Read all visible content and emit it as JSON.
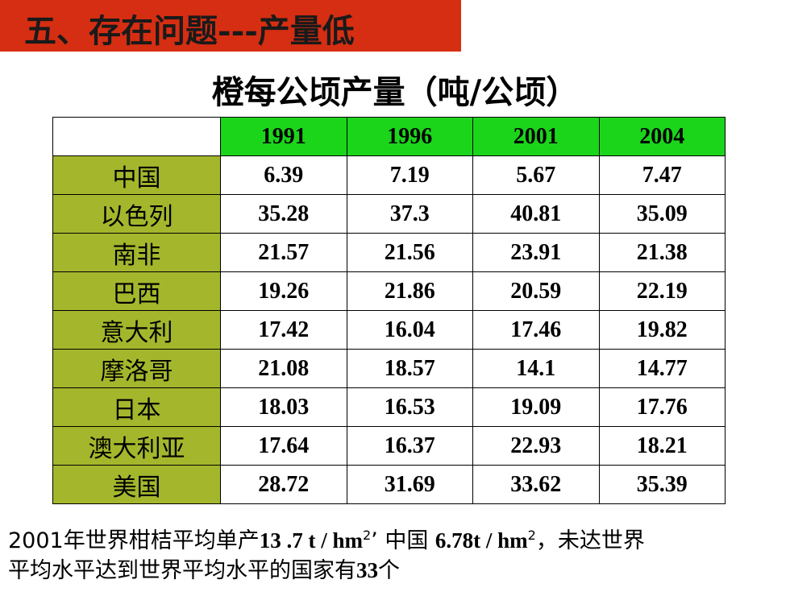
{
  "banner": {
    "title": "五、存在问题---产量低"
  },
  "table_title": "橙每公顷产量（吨/公顷）",
  "table": {
    "corner": "",
    "years": [
      "1991",
      "1996",
      "2001",
      "2004"
    ],
    "rows": [
      {
        "country": "中国",
        "values": [
          "6.39",
          "7.19",
          "5.67",
          "7.47"
        ]
      },
      {
        "country": "以色列",
        "values": [
          "35.28",
          "37.3",
          "40.81",
          "35.09"
        ]
      },
      {
        "country": "南非",
        "values": [
          "21.57",
          "21.56",
          "23.91",
          "21.38"
        ]
      },
      {
        "country": "巴西",
        "values": [
          "19.26",
          "21.86",
          "20.59",
          "22.19"
        ]
      },
      {
        "country": "意大利",
        "values": [
          "17.42",
          "16.04",
          "17.46",
          "19.82"
        ]
      },
      {
        "country": "摩洛哥",
        "values": [
          "21.08",
          "18.57",
          "14.1",
          "14.77"
        ]
      },
      {
        "country": "日本",
        "values": [
          "18.03",
          "16.53",
          "19.09",
          "17.76"
        ]
      },
      {
        "country": "澳大利亚",
        "values": [
          "17.64",
          "16.37",
          "22.93",
          "18.21"
        ]
      },
      {
        "country": "美国",
        "values": [
          "28.72",
          "31.69",
          "33.62",
          "35.39"
        ]
      }
    ]
  },
  "note": {
    "line1_prefix": "2001年世界柑桔平均单产",
    "world_yield": "13 .7 t / hm",
    "sup1": "2",
    "sep": "’ 中国 ",
    "china_yield": "6.78t / hm",
    "sup2": "2",
    "line1_suffix": "，未达世界",
    "line2_prefix": "平均水平达到世界平均水平的国家有",
    "count": "33",
    "line2_suffix": "个"
  }
}
